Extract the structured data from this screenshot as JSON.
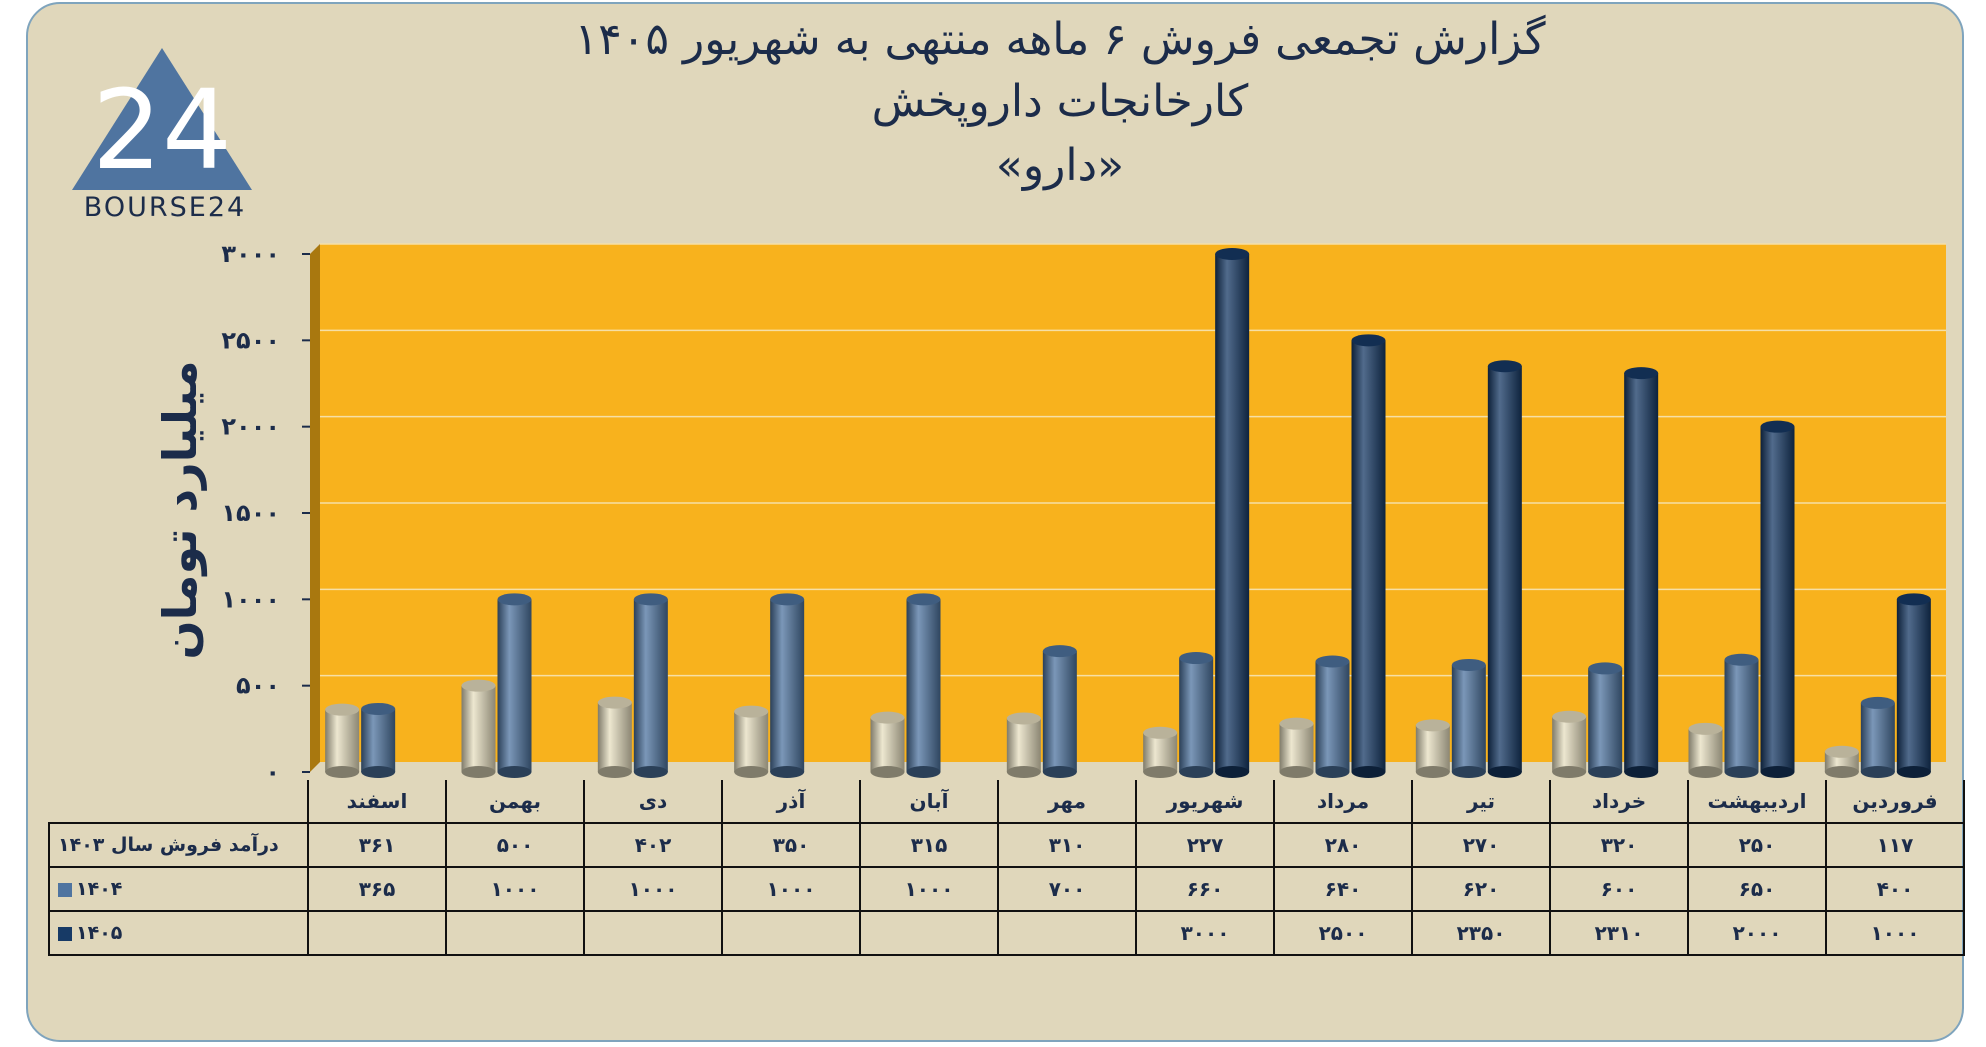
{
  "title_lines": [
    "گزارش تجمعی فروش ۶ ماهه منتهی به شهریور ۱۴۰۵",
    "کارخانجات داروپخش",
    "«دارو»"
  ],
  "logo": {
    "text": "BOURSE24",
    "numeral": "24"
  },
  "chart_data": {
    "type": "bar",
    "ylabel": "میلیارد تومان",
    "ylim": [
      0,
      3000
    ],
    "yticks": [
      0,
      500,
      1000,
      1500,
      2000,
      2500,
      3000
    ],
    "ytick_labels": [
      "۰",
      "۵۰۰",
      "۱۰۰۰",
      "۱۵۰۰",
      "۲۰۰۰",
      "۲۵۰۰",
      "۳۰۰۰"
    ],
    "categories": [
      "فروردین",
      "اردیبهشت",
      "خرداد",
      "تیر",
      "مرداد",
      "شهریور",
      "مهر",
      "آبان",
      "آذر",
      "دی",
      "بهمن",
      "اسفند"
    ],
    "series": [
      {
        "name": "درآمد فروش سال ۱۴۰۳",
        "color": "#e7dfc0",
        "values": [
          117,
          250,
          320,
          270,
          280,
          227,
          310,
          315,
          350,
          402,
          500,
          361
        ],
        "labels": [
          "۱۱۷",
          "۲۵۰",
          "۳۲۰",
          "۲۷۰",
          "۲۸۰",
          "۲۲۷",
          "۳۱۰",
          "۳۱۵",
          "۳۵۰",
          "۴۰۲",
          "۵۰۰",
          "۳۶۱"
        ]
      },
      {
        "name": "۱۴۰۴",
        "color": "#4f74a0",
        "values": [
          400,
          650,
          600,
          620,
          640,
          660,
          700,
          1000,
          1000,
          1000,
          1000,
          365
        ],
        "labels": [
          "۴۰۰",
          "۶۵۰",
          "۶۰۰",
          "۶۲۰",
          "۶۴۰",
          "۶۶۰",
          "۷۰۰",
          "۱۰۰۰",
          "۱۰۰۰",
          "۱۰۰۰",
          "۱۰۰۰",
          "۳۶۵"
        ]
      },
      {
        "name": "۱۴۰۵",
        "color": "#173a66",
        "values": [
          1000,
          2000,
          2310,
          2350,
          2500,
          3000,
          null,
          null,
          null,
          null,
          null,
          null
        ],
        "labels": [
          "۱۰۰۰",
          "۲۰۰۰",
          "۲۳۱۰",
          "۲۳۵۰",
          "۲۵۰۰",
          "۳۰۰۰",
          "",
          "",
          "",
          "",
          "",
          ""
        ]
      }
    ],
    "plot_background": "#f8b21d",
    "grid": true
  }
}
